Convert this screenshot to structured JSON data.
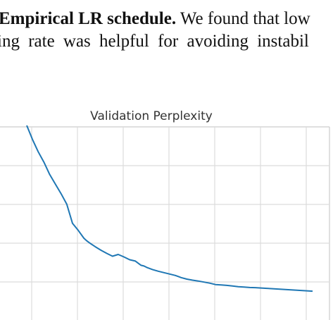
{
  "paragraph": {
    "line1_bold": "Empirical LR schedule.",
    "line1_rest": " We found that low",
    "line2": "ing rate was helpful for avoiding instabil"
  },
  "chart_data": {
    "type": "line",
    "title": "Validation Perplexity",
    "xlabel": "",
    "ylabel": "",
    "grid": true,
    "series": [
      {
        "color": "#1f77b4",
        "x": [
          0.0,
          0.02,
          0.04,
          0.06,
          0.08,
          0.1,
          0.12,
          0.14,
          0.16,
          0.18,
          0.2,
          0.21,
          0.22,
          0.24,
          0.26,
          0.28,
          0.3,
          0.32,
          0.34,
          0.36,
          0.38,
          0.39,
          0.4,
          0.41,
          0.42,
          0.44,
          0.46,
          0.48,
          0.5,
          0.52,
          0.54,
          0.56,
          0.58,
          0.6,
          0.62,
          0.64,
          0.66,
          0.68,
          0.7,
          0.72,
          0.74,
          0.76,
          0.78,
          0.8,
          0.82,
          0.84,
          0.86,
          0.88,
          0.9,
          0.92,
          0.94,
          0.96,
          0.98,
          1.0
        ],
        "y": [
          1.0,
          0.92,
          0.85,
          0.79,
          0.72,
          0.665,
          0.61,
          0.55,
          0.44,
          0.4,
          0.355,
          0.34,
          0.328,
          0.306,
          0.286,
          0.268,
          0.252,
          0.262,
          0.248,
          0.232,
          0.224,
          0.212,
          0.2,
          0.196,
          0.188,
          0.176,
          0.166,
          0.158,
          0.15,
          0.142,
          0.13,
          0.121,
          0.115,
          0.11,
          0.104,
          0.098,
          0.09,
          0.088,
          0.085,
          0.082,
          0.078,
          0.076,
          0.073,
          0.072,
          0.07,
          0.068,
          0.066,
          0.064,
          0.062,
          0.06,
          0.058,
          0.056,
          0.054,
          0.052
        ]
      }
    ],
    "xlim": [
      0,
      1
    ],
    "ylim": [
      0,
      1
    ]
  }
}
